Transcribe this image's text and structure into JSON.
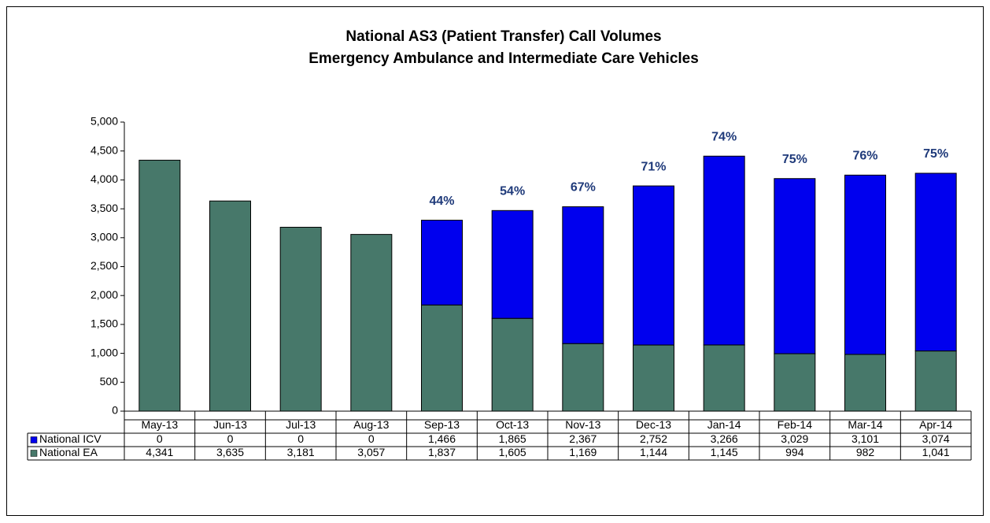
{
  "chart_data": {
    "type": "stacked_bar",
    "title": [
      "National AS3 (Patient Transfer) Call Volumes",
      "Emergency Ambulance and Intermediate Care Vehicles"
    ],
    "categories": [
      "May-13",
      "Jun-13",
      "Jul-13",
      "Aug-13",
      "Sep-13",
      "Oct-13",
      "Nov-13",
      "Dec-13",
      "Jan-14",
      "Feb-14",
      "Mar-14",
      "Apr-14"
    ],
    "series": [
      {
        "name": "National ICV",
        "color": "#0000ee",
        "values": [
          0,
          0,
          0,
          0,
          1466,
          1865,
          2367,
          2752,
          3266,
          3029,
          3101,
          3074
        ],
        "value_labels": [
          "0",
          "0",
          "0",
          "0",
          "1,466",
          "1,865",
          "2,367",
          "2,752",
          "3,266",
          "3,029",
          "3,101",
          "3,074"
        ]
      },
      {
        "name": "National EA",
        "color": "#47786a",
        "values": [
          4341,
          3635,
          3181,
          3057,
          1837,
          1605,
          1169,
          1144,
          1145,
          994,
          982,
          1041
        ],
        "value_labels": [
          "4,341",
          "3,635",
          "3,181",
          "3,057",
          "1,837",
          "1,605",
          "1,169",
          "1,144",
          "1,145",
          "994",
          "982",
          "1,041"
        ]
      }
    ],
    "stack_order": [
      "National EA",
      "National ICV"
    ],
    "annotations": [
      {
        "category": "Sep-13",
        "text": "44%"
      },
      {
        "category": "Oct-13",
        "text": "54%"
      },
      {
        "category": "Nov-13",
        "text": "67%"
      },
      {
        "category": "Dec-13",
        "text": "71%"
      },
      {
        "category": "Jan-14",
        "text": "74%"
      },
      {
        "category": "Feb-14",
        "text": "75%"
      },
      {
        "category": "Mar-14",
        "text": "76%"
      },
      {
        "category": "Apr-14",
        "text": "75%"
      }
    ],
    "annotation_color": "#1f3a7a",
    "ylim": [
      0,
      5000
    ],
    "yticks": [
      0,
      500,
      {
        "value": 1000,
        "label": "1,000"
      },
      {
        "value": 1500,
        "label": "1,500"
      },
      {
        "value": 2000,
        "label": "2,000"
      },
      {
        "value": 2500,
        "label": "2,500"
      },
      {
        "value": 3000,
        "label": "3,000"
      },
      {
        "value": 3500,
        "label": "3,500"
      },
      {
        "value": 4000,
        "label": "4,000"
      },
      {
        "value": 4500,
        "label": "4,500"
      },
      {
        "value": 5000,
        "label": "5,000"
      }
    ],
    "grid": false,
    "legend": "data_table"
  }
}
